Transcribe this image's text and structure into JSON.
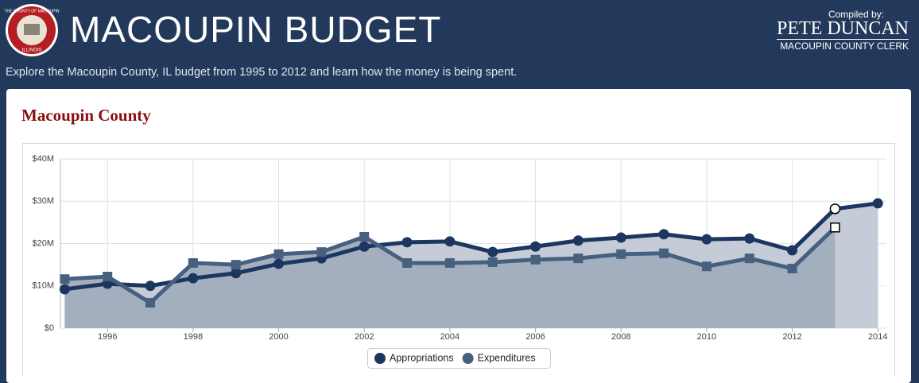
{
  "header": {
    "title": "MACOUPIN BUDGET",
    "seal_top": "THE COUNTY OF MACOUPIN",
    "seal_bottom": "ILLINOIS",
    "compiled_by": "Compiled by:",
    "author": "PETE DUNCAN",
    "author_role": "MACOUPIN COUNTY CLERK",
    "subtitle": "Explore the Macoupin County, IL budget from 1995 to 2012 and learn how the money is being spent."
  },
  "panel": {
    "title": "Macoupin County"
  },
  "chart_data": {
    "type": "line",
    "area": true,
    "x": [
      1995,
      1996,
      1997,
      1998,
      1999,
      2000,
      2001,
      2002,
      2003,
      2004,
      2005,
      2006,
      2007,
      2008,
      2009,
      2010,
      2011,
      2012,
      2013,
      2014
    ],
    "series": [
      {
        "name": "Appropriations",
        "color": "#1c3660",
        "area_color": "#c5ccd8",
        "marker": "circle",
        "values": [
          9200000,
          10500000,
          10000000,
          11800000,
          13000000,
          15200000,
          16500000,
          19300000,
          20300000,
          20500000,
          18000000,
          19300000,
          20700000,
          21400000,
          22200000,
          21000000,
          21200000,
          18400000,
          28200000,
          29500000
        ]
      },
      {
        "name": "Expenditures",
        "color": "#46607f",
        "area_color": "#a3aebf",
        "marker": "square",
        "values": [
          11600000,
          12200000,
          6000000,
          15400000,
          15000000,
          17500000,
          18000000,
          21600000,
          15400000,
          15400000,
          15600000,
          16200000,
          16500000,
          17500000,
          17700000,
          14600000,
          16500000,
          14100000,
          23800000,
          null
        ]
      }
    ],
    "hollow_x": 2013,
    "xlim": [
      1994.9,
      2014.2
    ],
    "xticks": [
      1996,
      1998,
      2000,
      2002,
      2004,
      2006,
      2008,
      2010,
      2012,
      2014
    ],
    "ylim": [
      0,
      40000000
    ],
    "yticks": [
      {
        "value": 0,
        "label": "$0"
      },
      {
        "value": 10000000,
        "label": "$10M"
      },
      {
        "value": 20000000,
        "label": "$20M"
      },
      {
        "value": 30000000,
        "label": "$30M"
      },
      {
        "value": 40000000,
        "label": "$40M"
      }
    ],
    "grid": true
  }
}
